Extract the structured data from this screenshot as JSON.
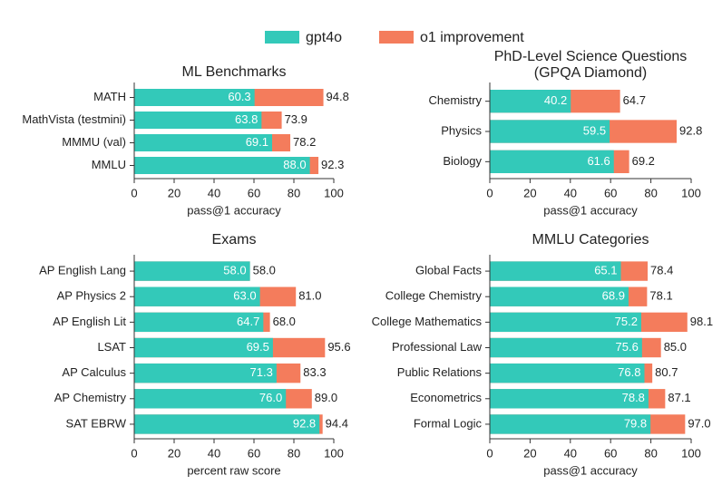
{
  "chart_data": [
    {
      "type": "bar",
      "title": "ML Benchmarks",
      "xlabel": "pass@1 accuracy",
      "categories": [
        "MATH",
        "MathVista (testmini)",
        "MMMU (val)",
        "MMLU"
      ],
      "series": [
        {
          "name": "gpt4o",
          "color": "#33c9b9",
          "values": [
            60.3,
            63.8,
            69.1,
            88.0
          ],
          "value_labels": [
            "60.3",
            "63.8",
            "69.1",
            "88.0"
          ]
        },
        {
          "name": "o1 improvement",
          "color": "#f47c5c",
          "values": [
            94.8,
            73.9,
            78.2,
            92.3
          ],
          "value_labels": [
            "94.8",
            "73.9",
            "78.2",
            "92.3"
          ]
        }
      ],
      "xlim": [
        0,
        100
      ],
      "xticks": [
        0,
        20,
        40,
        60,
        80,
        100
      ]
    },
    {
      "type": "bar",
      "title": [
        "PhD-Level Science Questions",
        "(GPQA Diamond)"
      ],
      "xlabel": "pass@1 accuracy",
      "categories": [
        "Chemistry",
        "Physics",
        "Biology"
      ],
      "series": [
        {
          "values": [
            40.2,
            59.5,
            61.6
          ],
          "value_labels": [
            "40.2",
            "59.5",
            "61.6"
          ]
        },
        {
          "values": [
            64.7,
            92.8,
            69.2
          ],
          "value_labels": [
            "64.7",
            "92.8",
            "69.2"
          ]
        }
      ],
      "xlim": [
        0,
        100
      ],
      "xticks": [
        0,
        20,
        40,
        60,
        80,
        100
      ]
    },
    {
      "type": "bar",
      "title": "Exams",
      "xlabel": "percent raw score",
      "categories": [
        "AP English Lang",
        "AP Physics 2",
        "AP English Lit",
        "LSAT",
        "AP Calculus",
        "AP Chemistry",
        "SAT EBRW"
      ],
      "series": [
        {
          "values": [
            58.0,
            63.0,
            64.7,
            69.5,
            71.3,
            76.0,
            92.8
          ],
          "value_labels": [
            "58.0",
            "63.0",
            "64.7",
            "69.5",
            "71.3",
            "76.0",
            "92.8"
          ]
        },
        {
          "values": [
            58.0,
            81.0,
            68.0,
            95.6,
            83.3,
            89.0,
            94.4
          ],
          "value_labels": [
            "58.0",
            "81.0",
            "68.0",
            "95.6",
            "83.3",
            "89.0",
            "94.4"
          ]
        }
      ],
      "xlim": [
        0,
        100
      ],
      "xticks": [
        0,
        20,
        40,
        60,
        80,
        100
      ]
    },
    {
      "type": "bar",
      "title": "MMLU Categories",
      "xlabel": "pass@1 accuracy",
      "categories": [
        "Global Facts",
        "College Chemistry",
        "College Mathematics",
        "Professional Law",
        "Public Relations",
        "Econometrics",
        "Formal Logic"
      ],
      "series": [
        {
          "values": [
            65.1,
            68.9,
            75.2,
            75.6,
            76.8,
            78.8,
            79.8
          ],
          "value_labels": [
            "65.1",
            "68.9",
            "75.2",
            "75.6",
            "76.8",
            "78.8",
            "79.8"
          ]
        },
        {
          "values": [
            78.4,
            78.1,
            98.1,
            85.0,
            80.7,
            87.1,
            97.0
          ],
          "value_labels": [
            "78.4",
            "78.1",
            "98.1",
            "85.0",
            "80.7",
            "87.1",
            "97.0"
          ]
        }
      ],
      "xlim": [
        0,
        100
      ],
      "xticks": [
        0,
        20,
        40,
        60,
        80,
        100
      ]
    }
  ]
}
